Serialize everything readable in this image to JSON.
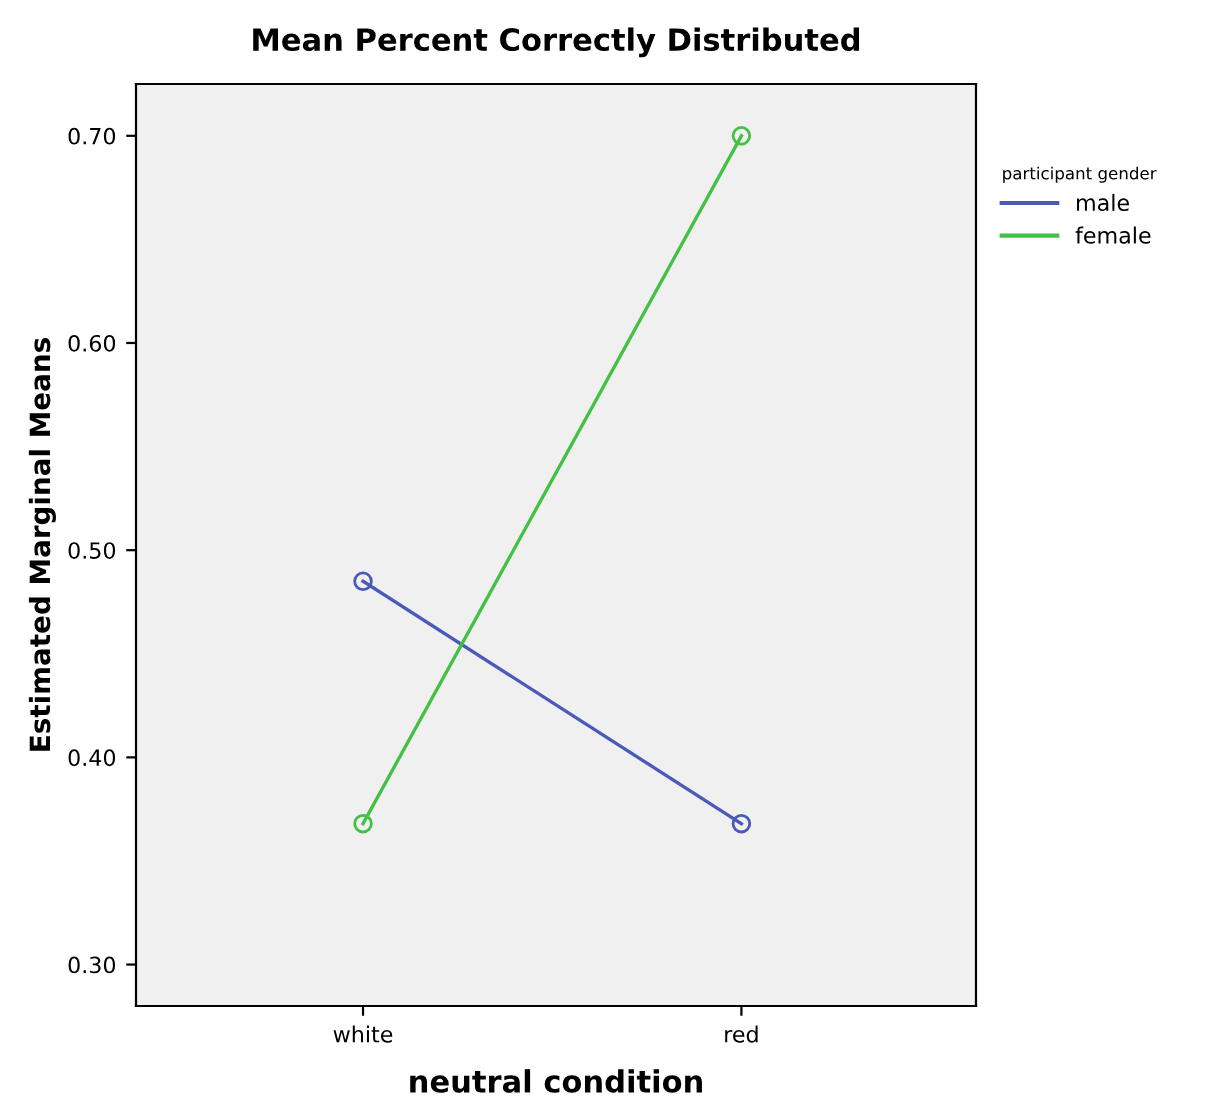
{
  "chart_data": {
    "type": "line",
    "title": "Mean Percent Correctly Distributed",
    "xlabel": "neutral condition",
    "ylabel": "Estimated Marginal Means",
    "legend_title": "participant gender",
    "categories": [
      "white",
      "red"
    ],
    "series": [
      {
        "name": "male",
        "color": "#4a5ab8",
        "values": [
          0.485,
          0.368
        ]
      },
      {
        "name": "female",
        "color": "#44c044",
        "values": [
          0.368,
          0.7
        ]
      }
    ],
    "ylim": [
      0.28,
      0.725
    ],
    "yticks": [
      {
        "value": 0.3,
        "label": "0.30"
      },
      {
        "value": 0.4,
        "label": "0.40"
      },
      {
        "value": 0.5,
        "label": "0.50"
      },
      {
        "value": 0.6,
        "label": "0.60"
      },
      {
        "value": 0.7,
        "label": "0.70"
      }
    ],
    "marker": "circle",
    "line_style": "solid",
    "grid": false,
    "legend": "top right"
  }
}
